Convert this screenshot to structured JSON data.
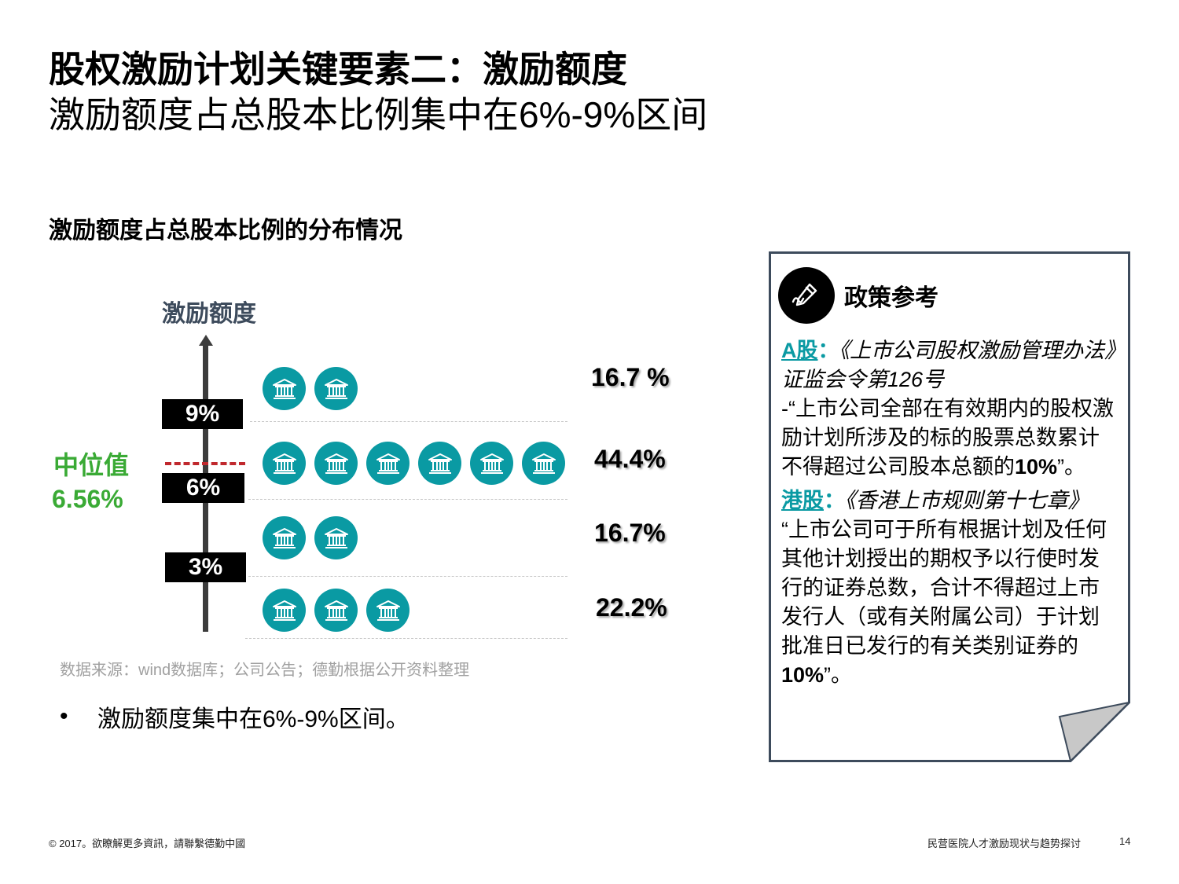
{
  "title": "股权激励计划关键要素二：激励额度",
  "subtitle": "激励额度占总股本比例集中在6%-9%区间",
  "chart": {
    "title": "激励额度占总股本比例的分布情况",
    "y_axis_label": "激励额度",
    "ticks": [
      "9%",
      "6%",
      "3%"
    ],
    "median_label": "中位值",
    "median_value": "6.56%",
    "rows": [
      {
        "icon_count": 2,
        "percent": "16.7 %"
      },
      {
        "icon_count": 6,
        "percent": "44.4%"
      },
      {
        "icon_count": 2,
        "percent": "16.7%"
      },
      {
        "icon_count": 3,
        "percent": "22.2%"
      }
    ],
    "icon": "bank-building-icon",
    "icon_color": "#0a9aa3",
    "median_color": "#3aaa35",
    "median_line_color": "#c0282d"
  },
  "source": "数据来源：wind数据库；公司公告；德勤根据公开资料整理",
  "bullet": {
    "marker": "•",
    "text": "激励额度集中在6%-9%区间。"
  },
  "policy": {
    "title": "政策参考",
    "icon": "pen-icon",
    "a_label": "A股",
    "a_colon": "：",
    "a_reg": "《上市公司股权激励管理办法》证监会令第126号",
    "a_quote": "-“上市公司全部在有效期内的股权激励计划所涉及的标的股票总数累计不得超过公司股本总额的",
    "a_pct": "10%",
    "a_end": "”。",
    "hk_label": "港股",
    "hk_colon": "：",
    "hk_reg": "《香港上市规则第十七章》",
    "hk_quote": "“上市公司可于所有根据计划及任何其他计划授出的期权予以行使时发行的证券总数，合计不得超过上市发行人（或有关附属公司）于计划批准日已发行的有关类别证券的",
    "hk_pct": "10%",
    "hk_end": "”。"
  },
  "footer": {
    "left": "© 2017。欲瞭解更多資訊，請聯繫德勤中國",
    "right": "民营医院人才激励现状与趋势探讨",
    "page": "14"
  }
}
